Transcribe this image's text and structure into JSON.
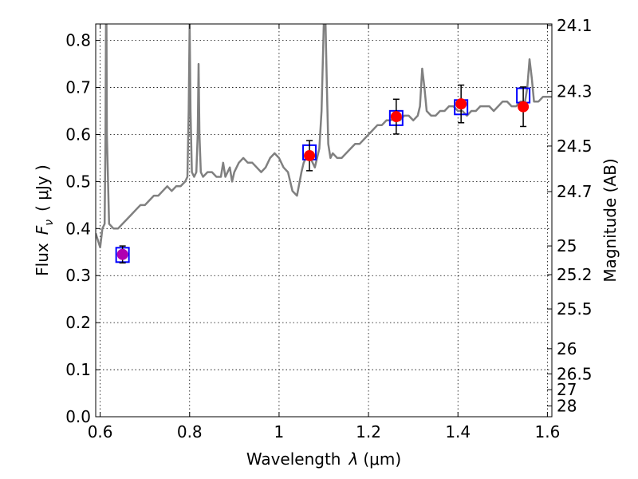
{
  "chart_data": {
    "type": "line",
    "xlabel": "Wavelength",
    "xlabel_symbol": "λ",
    "xlabel_unit": "(μm)",
    "ylabel": "Flux",
    "ylabel_symbol": "F",
    "ylabel_subscript": "ν",
    "ylabel_unit": "( μJy )",
    "y2label": "Magnitude (AB)",
    "xlim": [
      0.59,
      1.61
    ],
    "ylim": [
      0.0,
      0.835
    ],
    "grid": true,
    "x_ticks": [
      {
        "value": 0.6,
        "label": "0.6"
      },
      {
        "value": 0.8,
        "label": "0.8"
      },
      {
        "value": 1.0,
        "label": "1"
      },
      {
        "value": 1.2,
        "label": "1.2"
      },
      {
        "value": 1.4,
        "label": "1.4"
      },
      {
        "value": 1.6,
        "label": "1.6"
      }
    ],
    "y_ticks": [
      {
        "value": 0.0,
        "label": "0.0"
      },
      {
        "value": 0.1,
        "label": "0.1"
      },
      {
        "value": 0.2,
        "label": "0.2"
      },
      {
        "value": 0.3,
        "label": "0.3"
      },
      {
        "value": 0.4,
        "label": "0.4"
      },
      {
        "value": 0.5,
        "label": "0.5"
      },
      {
        "value": 0.6,
        "label": "0.6"
      },
      {
        "value": 0.7,
        "label": "0.7"
      },
      {
        "value": 0.8,
        "label": "0.8"
      }
    ],
    "mag_ticks": [
      {
        "value": 24.1,
        "label": "24.1"
      },
      {
        "value": 24.3,
        "label": "24.3"
      },
      {
        "value": 24.5,
        "label": "24.5"
      },
      {
        "value": 24.7,
        "label": "24.7"
      },
      {
        "value": 25.0,
        "label": "25"
      },
      {
        "value": 25.2,
        "label": "25.2"
      },
      {
        "value": 25.5,
        "label": "25.5"
      },
      {
        "value": 26.0,
        "label": "26"
      },
      {
        "value": 26.5,
        "label": "26.5"
      },
      {
        "value": 27.0,
        "label": "27"
      },
      {
        "value": 28.0,
        "label": "28"
      }
    ],
    "spectrum": {
      "color": "#808080",
      "x": [
        0.59,
        0.6,
        0.605,
        0.61,
        0.612,
        0.613,
        0.614,
        0.615,
        0.62,
        0.63,
        0.64,
        0.65,
        0.66,
        0.67,
        0.68,
        0.69,
        0.7,
        0.71,
        0.72,
        0.73,
        0.74,
        0.75,
        0.76,
        0.77,
        0.78,
        0.79,
        0.795,
        0.798,
        0.8,
        0.802,
        0.805,
        0.81,
        0.815,
        0.818,
        0.82,
        0.822,
        0.825,
        0.83,
        0.84,
        0.85,
        0.86,
        0.87,
        0.875,
        0.88,
        0.89,
        0.895,
        0.9,
        0.91,
        0.92,
        0.93,
        0.94,
        0.95,
        0.96,
        0.97,
        0.98,
        0.99,
        1.0,
        1.01,
        1.02,
        1.03,
        1.04,
        1.05,
        1.055,
        1.06,
        1.07,
        1.08,
        1.09,
        1.095,
        1.1,
        1.104,
        1.107,
        1.11,
        1.115,
        1.12,
        1.13,
        1.14,
        1.15,
        1.16,
        1.17,
        1.18,
        1.19,
        1.2,
        1.21,
        1.22,
        1.23,
        1.24,
        1.25,
        1.26,
        1.27,
        1.28,
        1.29,
        1.3,
        1.31,
        1.315,
        1.32,
        1.325,
        1.33,
        1.34,
        1.35,
        1.36,
        1.37,
        1.38,
        1.39,
        1.4,
        1.41,
        1.42,
        1.43,
        1.44,
        1.45,
        1.46,
        1.47,
        1.48,
        1.49,
        1.5,
        1.51,
        1.52,
        1.53,
        1.54,
        1.55,
        1.555,
        1.56,
        1.565,
        1.57,
        1.58,
        1.59,
        1.6,
        1.61
      ],
      "y": [
        0.39,
        0.36,
        0.4,
        0.41,
        0.6,
        0.835,
        0.835,
        0.6,
        0.41,
        0.4,
        0.4,
        0.41,
        0.42,
        0.43,
        0.44,
        0.45,
        0.45,
        0.46,
        0.47,
        0.47,
        0.48,
        0.49,
        0.48,
        0.49,
        0.49,
        0.5,
        0.51,
        0.65,
        0.835,
        0.65,
        0.52,
        0.51,
        0.52,
        0.6,
        0.75,
        0.6,
        0.52,
        0.51,
        0.52,
        0.52,
        0.51,
        0.51,
        0.54,
        0.51,
        0.53,
        0.5,
        0.52,
        0.54,
        0.55,
        0.54,
        0.54,
        0.53,
        0.52,
        0.53,
        0.55,
        0.56,
        0.55,
        0.53,
        0.52,
        0.48,
        0.47,
        0.52,
        0.54,
        0.55,
        0.55,
        0.53,
        0.57,
        0.65,
        0.835,
        0.835,
        0.7,
        0.58,
        0.55,
        0.56,
        0.55,
        0.55,
        0.56,
        0.57,
        0.58,
        0.58,
        0.59,
        0.6,
        0.61,
        0.62,
        0.62,
        0.63,
        0.63,
        0.64,
        0.63,
        0.64,
        0.64,
        0.63,
        0.64,
        0.66,
        0.74,
        0.7,
        0.65,
        0.64,
        0.64,
        0.65,
        0.65,
        0.66,
        0.66,
        0.65,
        0.65,
        0.64,
        0.65,
        0.65,
        0.66,
        0.66,
        0.66,
        0.65,
        0.66,
        0.67,
        0.67,
        0.66,
        0.66,
        0.67,
        0.67,
        0.7,
        0.76,
        0.72,
        0.67,
        0.67,
        0.68,
        0.68,
        0.68
      ]
    },
    "photometry": [
      {
        "x": 0.65,
        "y": 0.345,
        "err": 0.018
      },
      {
        "x": 1.068,
        "y": 0.555,
        "err": 0.032
      },
      {
        "x": 1.262,
        "y": 0.638,
        "err": 0.037
      },
      {
        "x": 1.407,
        "y": 0.665,
        "err": 0.04
      },
      {
        "x": 1.546,
        "y": 0.659,
        "err": 0.042
      }
    ],
    "model_boxes": [
      {
        "x": 0.65,
        "y": 0.344
      },
      {
        "x": 1.068,
        "y": 0.562
      },
      {
        "x": 1.262,
        "y": 0.635
      },
      {
        "x": 1.407,
        "y": 0.658
      },
      {
        "x": 1.546,
        "y": 0.683
      }
    ],
    "colors": {
      "points": "#ff0000",
      "boxes": "#0000ff",
      "errorbars": "#000000",
      "first_point": "#b000b0"
    }
  }
}
